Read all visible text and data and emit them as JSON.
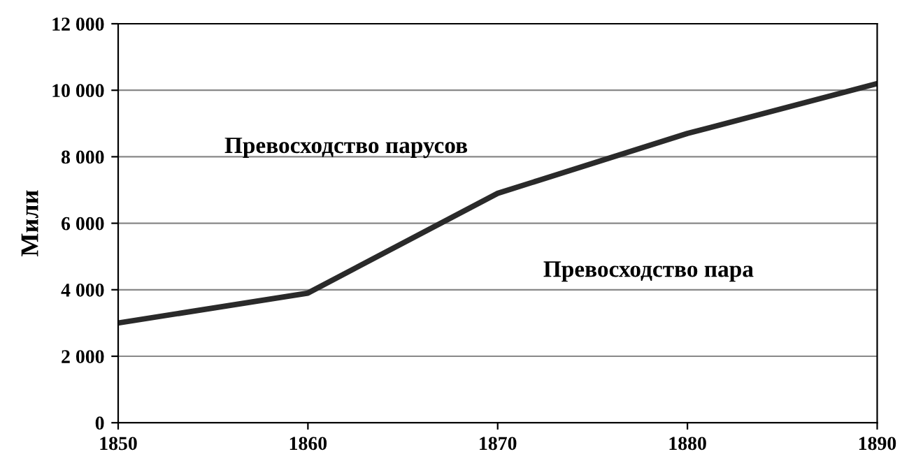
{
  "chart_data": {
    "type": "line",
    "ylabel": "Мили",
    "x": [
      1850,
      1860,
      1870,
      1880,
      1890
    ],
    "series": [
      {
        "color": "#2a2a2a",
        "values": [
          3000,
          3900,
          6900,
          8700,
          10200
        ]
      }
    ],
    "xlim": [
      1850,
      1890
    ],
    "xticks": [
      1850,
      1860,
      1870,
      1880,
      1890
    ],
    "ylim": [
      0,
      12000
    ],
    "yticks": [
      0,
      {
        "value": 2000,
        "label": "2 000"
      },
      {
        "value": 4000,
        "label": "4 000"
      },
      {
        "value": 6000,
        "label": "6 000"
      },
      {
        "value": 8000,
        "label": "8 000"
      },
      {
        "value": 10000,
        "label": "10 000"
      },
      {
        "value": 12000,
        "label": "12 000"
      }
    ],
    "grid": "y",
    "marker": "none",
    "line_style": "solid",
    "legend": false,
    "annotations": [
      "Превосходство парусов",
      "Превосходство пара"
    ]
  }
}
